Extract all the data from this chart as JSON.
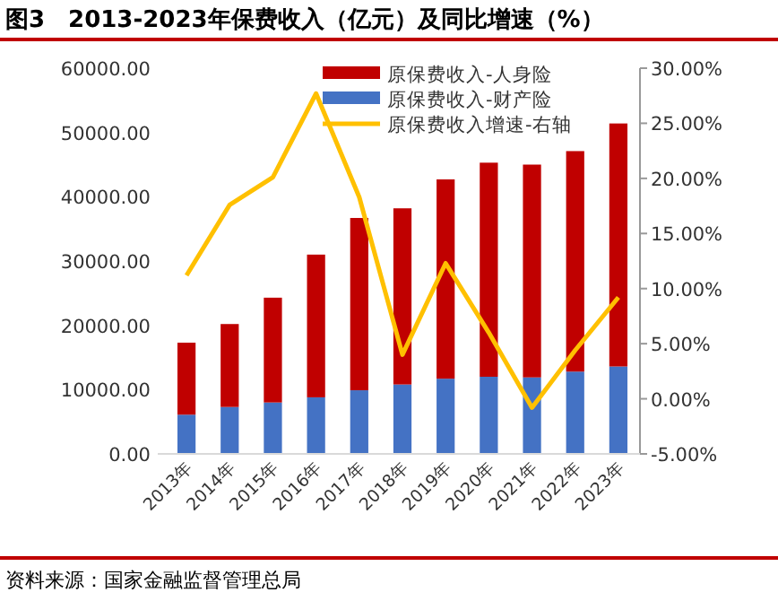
{
  "chart_data": {
    "type": "bar",
    "stacked": true,
    "title": "图3　2013-2023年保费收入（亿元）及同比增速（%）",
    "annotations": [
      "资料来源：国家金融监督管理总局"
    ],
    "categories": [
      "2013年",
      "2014年",
      "2015年",
      "2016年",
      "2017年",
      "2018年",
      "2019年",
      "2020年",
      "2021年",
      "2022年",
      "2023年"
    ],
    "series": [
      {
        "name": "原保费收入-财产险",
        "color": "#4472c4",
        "values": [
          6100,
          7300,
          8000,
          8800,
          9900,
          10800,
          11700,
          12000,
          11900,
          12800,
          13600
        ]
      },
      {
        "name": "原保费收入-人身险",
        "color": "#c00000",
        "values": [
          11200,
          12900,
          16300,
          22200,
          26800,
          27400,
          31000,
          33300,
          33100,
          34300,
          37800
        ]
      },
      {
        "name": "原保费收入增速-右轴",
        "type": "line",
        "axis": "y2",
        "color": "#ffc000",
        "values": [
          11.2,
          17.6,
          20.1,
          27.7,
          18.3,
          4.0,
          12.3,
          6.0,
          -0.8,
          4.4,
          9.2
        ]
      }
    ],
    "ylim": [
      0,
      60000
    ],
    "yticks": [
      {
        "value": 0,
        "label": "0.00"
      },
      {
        "value": 10000,
        "label": "10000.00"
      },
      {
        "value": 20000,
        "label": "20000.00"
      },
      {
        "value": 30000,
        "label": "30000.00"
      },
      {
        "value": 40000,
        "label": "40000.00"
      },
      {
        "value": 50000,
        "label": "50000.00"
      },
      {
        "value": 60000,
        "label": "60000.00"
      }
    ],
    "y2lim": [
      -5,
      30
    ],
    "y2ticks": [
      {
        "value": -5,
        "label": "-5.00%"
      },
      {
        "value": 0,
        "label": "0.00%"
      },
      {
        "value": 5,
        "label": "5.00%"
      },
      {
        "value": 10,
        "label": "10.00%"
      },
      {
        "value": 15,
        "label": "15.00%"
      },
      {
        "value": 20,
        "label": "20.00%"
      },
      {
        "value": 25,
        "label": "25.00%"
      },
      {
        "value": 30,
        "label": "30.00%"
      }
    ],
    "legend": "top right",
    "grid": false
  }
}
